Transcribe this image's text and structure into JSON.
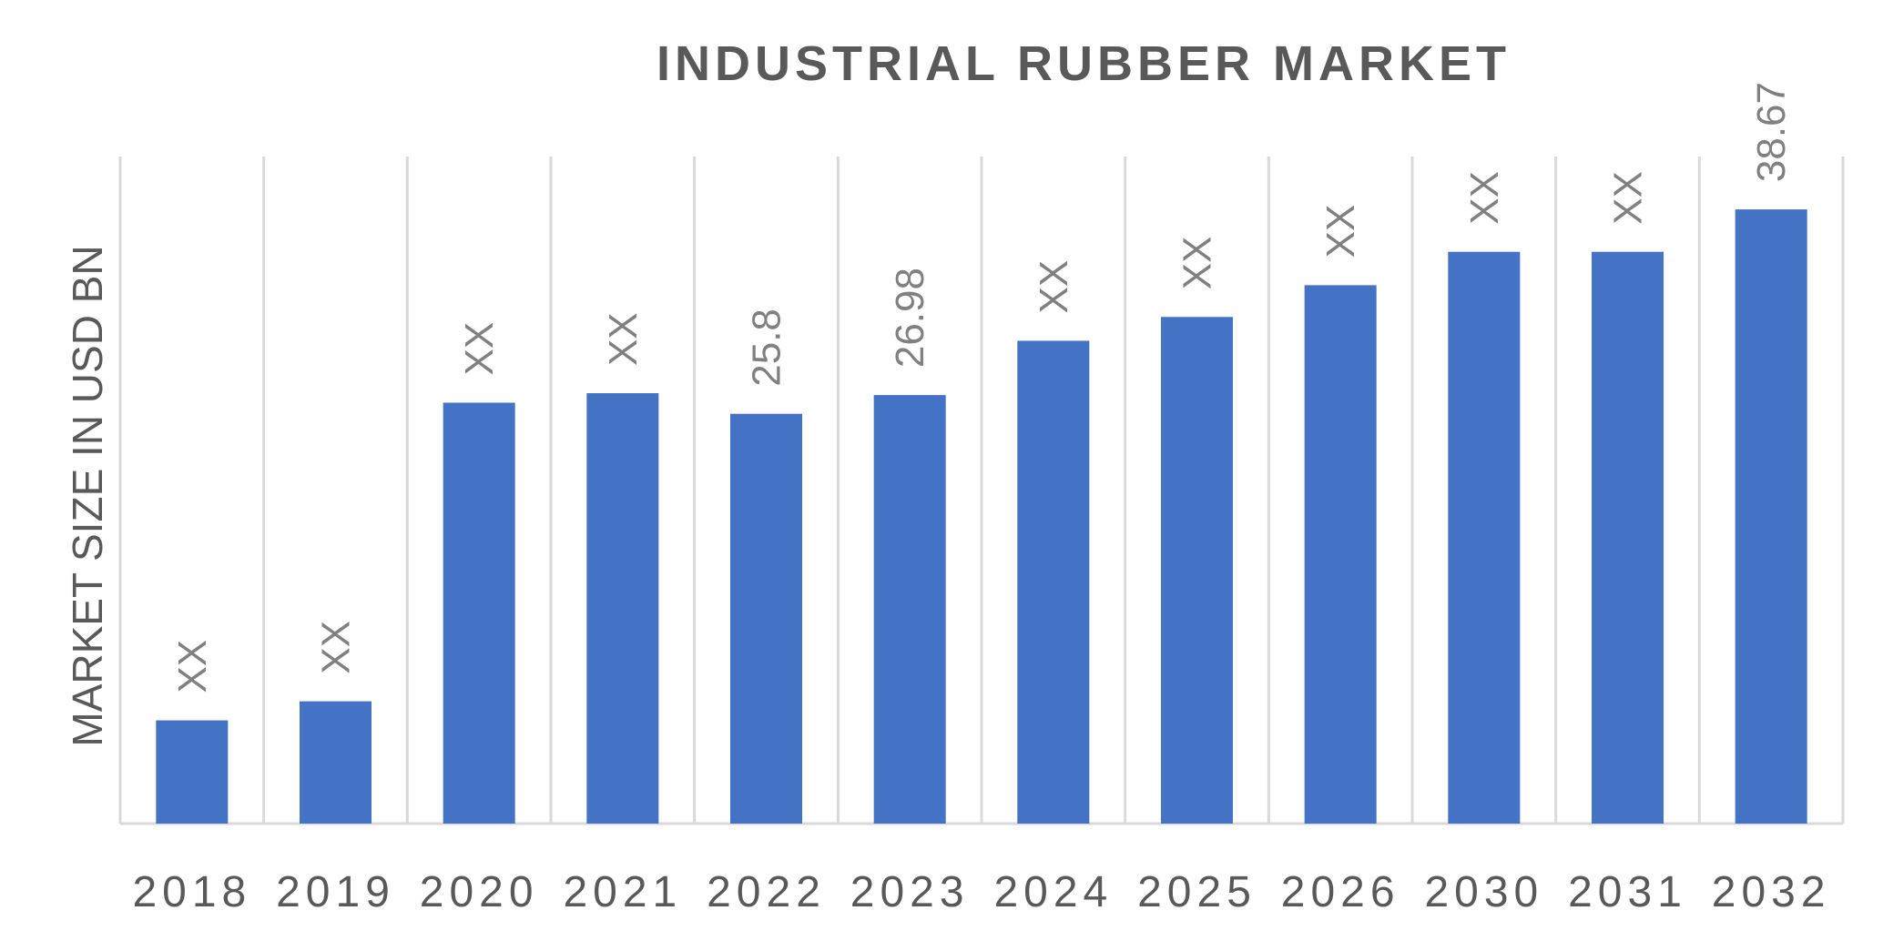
{
  "chart_data": {
    "type": "bar",
    "title": "INDUSTRIAL RUBBER MARKET",
    "xlabel": "",
    "ylabel": "MARKET SIZE IN USD BN",
    "ylim": [
      0,
      42
    ],
    "grid": "vertical separators",
    "bar_color": "#4472C4",
    "categories": [
      "2018",
      "2019",
      "2020",
      "2021",
      "2022",
      "2023",
      "2024",
      "2025",
      "2026",
      "2030",
      "2031",
      "2032"
    ],
    "values": [
      6.5,
      7.7,
      26.5,
      27.1,
      25.8,
      26.98,
      30.4,
      31.9,
      33.9,
      36.0,
      36.0,
      38.67
    ],
    "data_labels": [
      "XX",
      "XX",
      "XX",
      "XX",
      "25.8",
      "26.98",
      "XX",
      "XX",
      "XX",
      "XX",
      "XX",
      "38.67"
    ]
  }
}
